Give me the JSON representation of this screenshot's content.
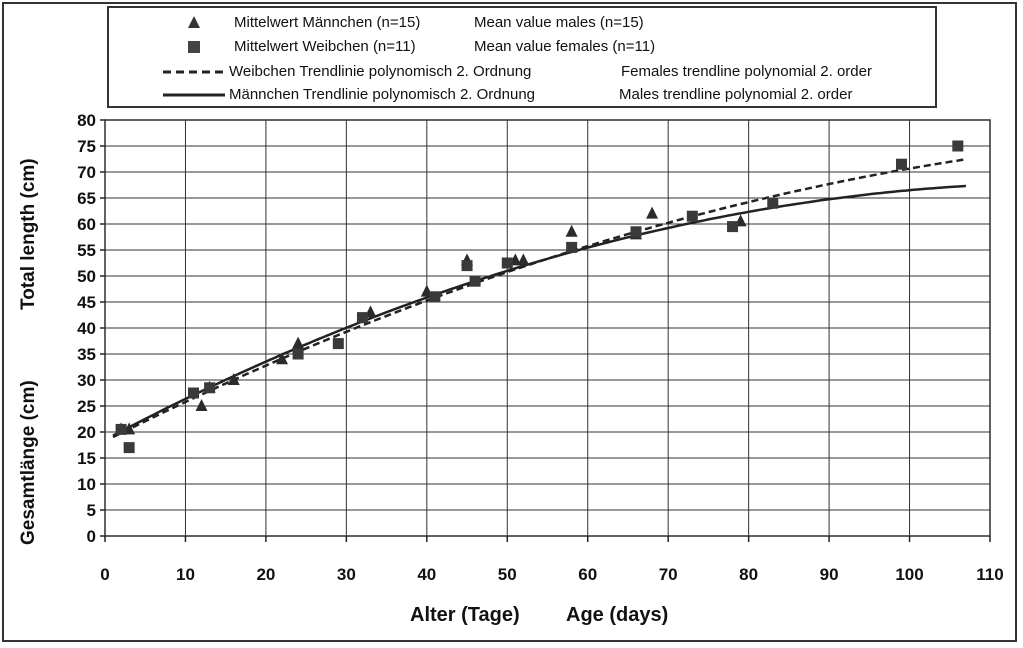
{
  "chart_data": {
    "type": "scatter",
    "xlabel_de": "Alter (Tage)",
    "xlabel_en": "Age (days)",
    "ylabel_de": "Gesamtlänge (cm)",
    "ylabel_en": "Total length (cm)",
    "xlim": [
      0,
      110
    ],
    "ylim": [
      0,
      80
    ],
    "x_ticks": [
      "0",
      "10",
      "20",
      "30",
      "40",
      "50",
      "60",
      "70",
      "80",
      "90",
      "100",
      "110"
    ],
    "y_ticks": [
      "0",
      "5",
      "10",
      "15",
      "20",
      "25",
      "30",
      "35",
      "40",
      "45",
      "50",
      "55",
      "60",
      "65",
      "70",
      "75",
      "80"
    ],
    "grid": true,
    "legend_placement": "top",
    "series": [
      {
        "name_de": "Mittelwert Männchen (n=15)",
        "name_en": "Mean value males (n=15)",
        "marker": "triangle",
        "points": [
          [
            2,
            20.5
          ],
          [
            3,
            20.5
          ],
          [
            12,
            25
          ],
          [
            13,
            28.5
          ],
          [
            16,
            30
          ],
          [
            22,
            34
          ],
          [
            24,
            37
          ],
          [
            33,
            43
          ],
          [
            40,
            47
          ],
          [
            45,
            53
          ],
          [
            51,
            53
          ],
          [
            52,
            53
          ],
          [
            58,
            58.5
          ],
          [
            66,
            58
          ],
          [
            68,
            62
          ],
          [
            79,
            60.5
          ]
        ]
      },
      {
        "name_de": "Mittelwert Weibchen (n=11)",
        "name_en": "Mean value females (n=11)",
        "marker": "square",
        "points": [
          [
            2,
            20.5
          ],
          [
            3,
            17
          ],
          [
            11,
            27.5
          ],
          [
            13,
            28.5
          ],
          [
            24,
            35
          ],
          [
            29,
            37
          ],
          [
            32,
            42
          ],
          [
            41,
            46
          ],
          [
            45,
            52
          ],
          [
            46,
            49
          ],
          [
            50,
            52.5
          ],
          [
            58,
            55.5
          ],
          [
            66,
            58.5
          ],
          [
            73,
            61.5
          ],
          [
            78,
            59.5
          ],
          [
            83,
            64
          ],
          [
            99,
            71.5
          ],
          [
            106,
            75
          ]
        ]
      }
    ],
    "trendlines": [
      {
        "name_de": "Weibchen Trendlinie polynomisch 2. Ordnung",
        "name_en": "Females trendline polynomial 2. order",
        "style": "dashed",
        "x_range": [
          1,
          107
        ],
        "coefficients": [
          18.26,
          0.776,
          -0.00252
        ]
      },
      {
        "name_de": "Männchen Trendlinie polynomisch 2. Ordnung",
        "name_en": "Males trendline polynomial 2. order",
        "style": "solid",
        "x_range": [
          1,
          107
        ],
        "coefficients": [
          18.5,
          0.82,
          -0.0034
        ]
      }
    ]
  }
}
